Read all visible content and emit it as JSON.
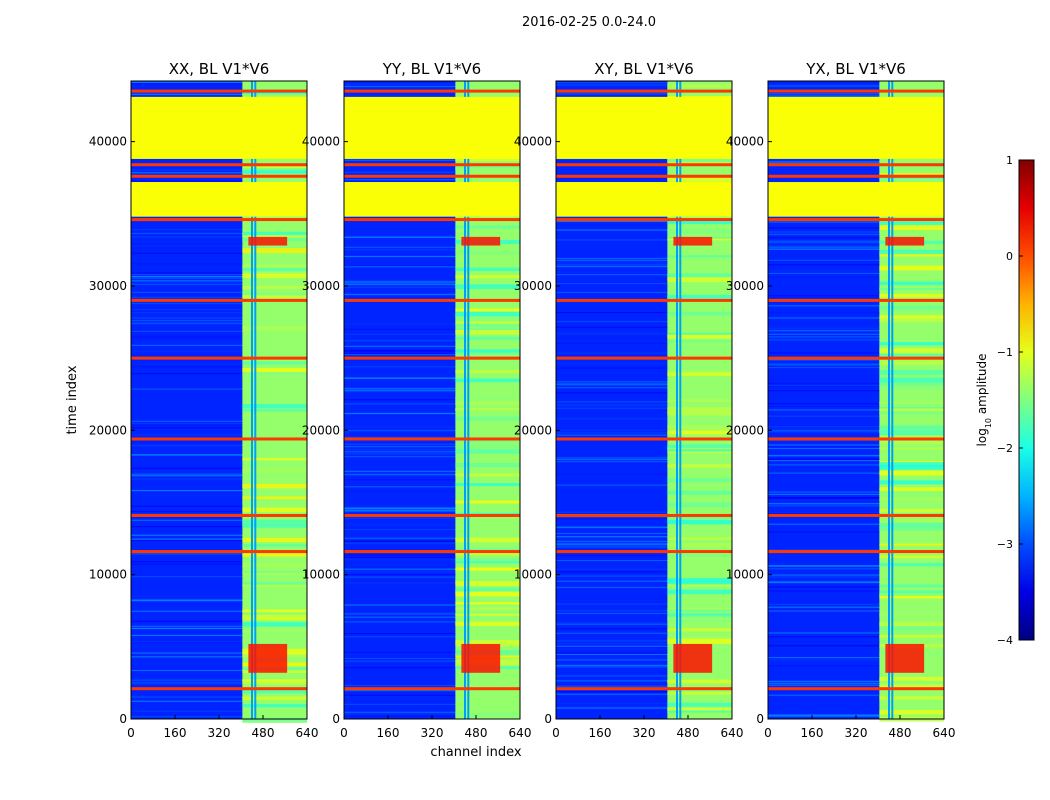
{
  "figure": {
    "suptitle": "2016-02-25 0.0-24.0",
    "xlabel": "channel index",
    "ylabel": "time index",
    "colorbar": {
      "label_main": "log",
      "label_sub": "10",
      "label_tail": " amplitude",
      "ticks": [
        "1",
        "0",
        "−1",
        "−2",
        "−3",
        "−4"
      ],
      "tick_values": [
        1,
        0,
        -1,
        -2,
        -3,
        -4
      ],
      "range": [
        -4,
        1
      ],
      "colormap": "jet"
    }
  },
  "chart_data": {
    "type": "heatmap",
    "shared": {
      "xlabel": "channel index",
      "ylabel": "time index",
      "xlim": [
        0,
        640
      ],
      "ylim": [
        0,
        44200
      ],
      "xticks": [
        0,
        160,
        320,
        480,
        640
      ],
      "xtick_labels": [
        "0",
        "160",
        "320",
        "480",
        "640"
      ],
      "yticks": [
        0,
        10000,
        20000,
        30000,
        40000
      ],
      "ytick_labels": [
        "0",
        "10000",
        "20000",
        "30000",
        "40000"
      ],
      "value_label": "log10 amplitude",
      "value_range": [
        -4,
        1
      ],
      "background_level": -3.2,
      "flagged_value": -0.9,
      "flagged_time_ranges": [
        [
          34800,
          37200
        ],
        [
          38800,
          43100
        ]
      ],
      "flagged_time_lines": [
        2100,
        11600,
        14100,
        19400,
        25000,
        29000,
        34600,
        37600,
        38400,
        43500
      ],
      "rfi_band_channels": [
        405,
        640
      ],
      "rfi_band_level": -1.4,
      "strong_channel_lines": [
        440,
        452
      ],
      "hot_time_ranges": [
        [
          3200,
          5200
        ],
        [
          32800,
          33400
        ]
      ],
      "hot_level": 0.3
    },
    "panels": [
      {
        "title": "XX, BL V1*V6",
        "polarization": "XX",
        "baseline": "V1*V6",
        "show_ylabel": true,
        "show_xlabel": false
      },
      {
        "title": "YY, BL V1*V6",
        "polarization": "YY",
        "baseline": "V1*V6",
        "show_ylabel": false,
        "show_xlabel": true
      },
      {
        "title": "XY, BL V1*V6",
        "polarization": "XY",
        "baseline": "V1*V6",
        "show_ylabel": false,
        "show_xlabel": false
      },
      {
        "title": "YX, BL V1*V6",
        "polarization": "YX",
        "baseline": "V1*V6",
        "show_ylabel": false,
        "show_xlabel": false
      }
    ]
  }
}
